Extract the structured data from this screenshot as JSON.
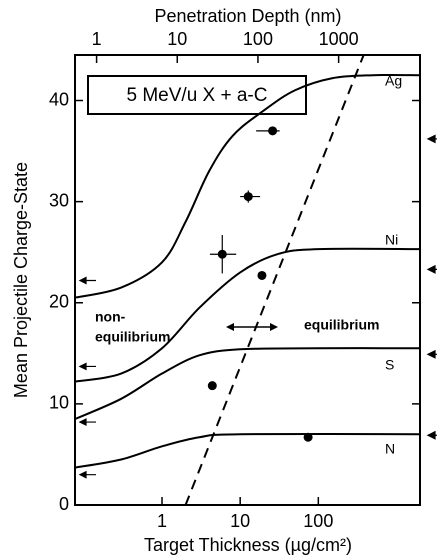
{
  "chart_data": {
    "type": "line",
    "x_label": "Target Thickness (µg/cm²)",
    "y_label": "Mean Projectile Charge-State",
    "top_axis_label": "Penetration Depth (nm)",
    "xlog": true,
    "xlim": [
      0.077,
      2000
    ],
    "xticks": [
      1,
      10,
      100
    ],
    "x2lim": [
      0.54,
      10200
    ],
    "x2ticks": [
      1,
      10,
      100,
      1000
    ],
    "ylim": [
      0,
      44.5
    ],
    "yticks": [
      0,
      10,
      20,
      30,
      40
    ],
    "color": "#000000",
    "series": [
      {
        "name": "Ag",
        "x": [
          0.077,
          0.3,
          1,
          2,
          4,
          8,
          20,
          50,
          150,
          500,
          2000
        ],
        "values": [
          20.5,
          21.5,
          24,
          28,
          33,
          36.5,
          39,
          41,
          42.2,
          42.5,
          42.5
        ]
      },
      {
        "name": "Ni",
        "x": [
          0.077,
          0.3,
          1,
          3,
          10,
          30,
          100,
          2000
        ],
        "values": [
          12.2,
          13,
          15.5,
          19.5,
          23,
          24.8,
          25.3,
          25.3
        ]
      },
      {
        "name": "S",
        "x": [
          0.077,
          0.3,
          1,
          3,
          10,
          100,
          2000
        ],
        "values": [
          8.5,
          10.5,
          13,
          14.8,
          15.4,
          15.5,
          15.5
        ]
      },
      {
        "name": "N",
        "x": [
          0.077,
          0.3,
          1,
          3,
          10,
          2000
        ],
        "values": [
          3.7,
          4.5,
          5.8,
          6.7,
          7,
          7
        ]
      }
    ],
    "equilibrium_line": {
      "x": [
        2,
        380
      ],
      "values": [
        0,
        44.5
      ]
    },
    "measurements": {
      "x": [
        26,
        12.7,
        5.9,
        19,
        4.4,
        74
      ],
      "values": [
        37,
        30.5,
        24.8,
        22.7,
        11.8,
        6.7
      ],
      "x_low": [
        16,
        10,
        4.1,
        null,
        null,
        null
      ],
      "x_high": [
        32,
        18,
        8.9,
        null,
        null,
        null
      ],
      "yerr": [
        null,
        0.6,
        1.9,
        null,
        null,
        null
      ]
    },
    "left_markers": [
      22.2,
      13.7,
      8.2,
      3
    ],
    "right_markers": [
      36.2,
      23.3,
      14.9,
      6.9
    ],
    "annotations": {
      "box": "5 MeV/u X + a-C",
      "non_equilibrium": [
        "non-",
        "equilibrium"
      ],
      "equilibrium": "equilibrium"
    }
  }
}
